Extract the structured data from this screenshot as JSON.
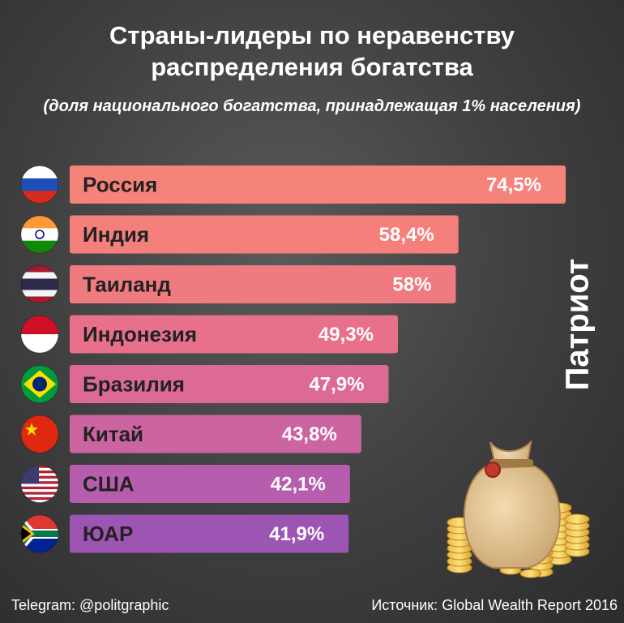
{
  "title": "Страны-лидеры по неравенству\nраспределения богатства",
  "subtitle": "(доля национального богатства, принадлежащая 1% населения)",
  "side_label": "Патриот",
  "footer": {
    "telegram": "Telegram: @politgraphic",
    "source": "Источник: Global Wealth Report 2016"
  },
  "chart_data": {
    "type": "bar",
    "orientation": "horizontal",
    "categories": [
      "Россия",
      "Индия",
      "Таиланд",
      "Индонезия",
      "Бразилия",
      "Китай",
      "США",
      "ЮАР"
    ],
    "values": [
      74.5,
      58.4,
      58,
      49.3,
      47.9,
      43.8,
      42.1,
      41.9
    ],
    "value_labels": [
      "74,5%",
      "58,4%",
      "58%",
      "49,3%",
      "47,9%",
      "43,8%",
      "42,1%",
      "41,9%"
    ],
    "bar_colors": [
      "#f6837a",
      "#f47f7b",
      "#ef7a80",
      "#e8708a",
      "#dc6a95",
      "#cc64a2",
      "#b75dad",
      "#9c55b2"
    ],
    "flag_icons": [
      "russia-flag-icon",
      "india-flag-icon",
      "thailand-flag-icon",
      "indonesia-flag-icon",
      "brazil-flag-icon",
      "china-flag-icon",
      "usa-flag-icon",
      "south-africa-flag-icon"
    ]
  },
  "decoration": {
    "icon": "money-bag-with-coins-icon"
  }
}
